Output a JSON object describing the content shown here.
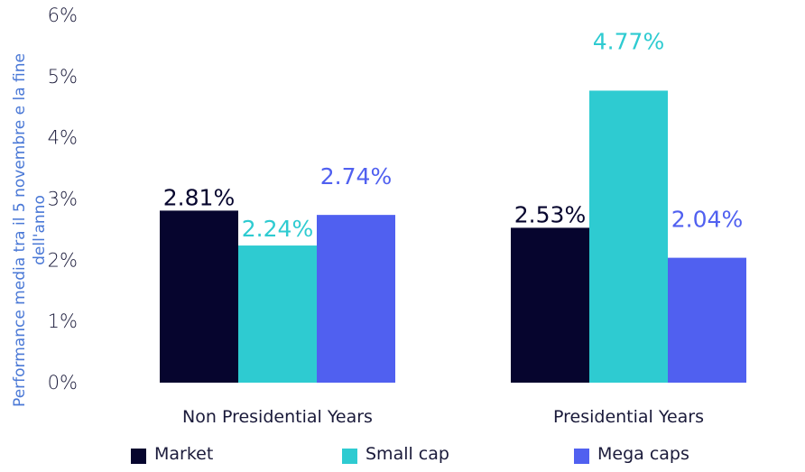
{
  "chart_data": {
    "type": "bar",
    "categories": [
      "Non Presidential Years",
      "Presidential Years"
    ],
    "series": [
      {
        "name": "Market",
        "values": [
          2.81,
          2.53
        ],
        "labels": [
          "2.81%",
          "2.53%"
        ],
        "color": "#06052e",
        "label_color": "#06052e"
      },
      {
        "name": "Small cap",
        "values": [
          2.24,
          4.77
        ],
        "labels": [
          "2.24%",
          "4.77%"
        ],
        "color": "#2ecbd1",
        "label_color": "#2ecbd1"
      },
      {
        "name": "Mega caps",
        "values": [
          2.74,
          2.04
        ],
        "labels": [
          "2.74%",
          "2.04%"
        ],
        "color": "#5060f0",
        "label_color": "#5060f0"
      }
    ],
    "yticks": [
      "0%",
      "1%",
      "2%",
      "3%",
      "4%",
      "5%",
      "6%"
    ],
    "ylim": [
      0,
      6
    ],
    "ylabel": "Performance media tra il 5 novembre e la fine dell'anno",
    "ylabel_lines": [
      "Performance media tra il 5 novembre e la fine",
      "dell'anno"
    ],
    "legend_position": "bottom",
    "grid": false
  }
}
